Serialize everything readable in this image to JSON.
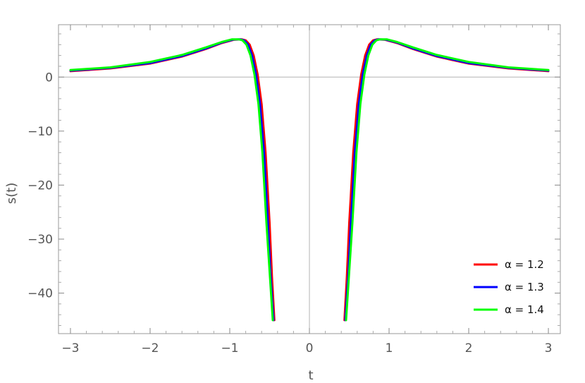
{
  "chart_data": {
    "type": "line",
    "title": "",
    "xlabel": "t",
    "ylabel": "s(t)",
    "xlim": [
      -3.15,
      3.15
    ],
    "ylim": [
      -47.5,
      9.7
    ],
    "x_ticks": [
      -3,
      -2,
      -1,
      0,
      1,
      2,
      3
    ],
    "x_tick_labels": [
      "−3",
      "−2",
      "−1",
      "0",
      "1",
      "2",
      "3"
    ],
    "y_ticks": [
      0,
      -10,
      -20,
      -30,
      -40
    ],
    "y_tick_labels": [
      "0",
      "−10",
      "−20",
      "−30",
      "−40"
    ],
    "grid": false,
    "zero_lines": true,
    "legend_position": "bottom-right",
    "series": [
      {
        "name": "α = 1.2",
        "color": "#ff0000",
        "x": [
          -3.0,
          -2.5,
          -2.0,
          -1.6,
          -1.3,
          -1.1,
          -0.95,
          -0.85,
          -0.8,
          -0.75,
          -0.7,
          -0.65,
          -0.6,
          -0.55,
          -0.5,
          -0.47,
          -0.44,
          0.44,
          0.47,
          0.5,
          0.55,
          0.6,
          0.65,
          0.7,
          0.75,
          0.8,
          0.85,
          0.95,
          1.1,
          1.3,
          1.6,
          2.0,
          2.5,
          3.0
        ],
        "y": [
          1.1,
          1.6,
          2.5,
          3.8,
          5.2,
          6.3,
          6.9,
          7.0,
          6.8,
          6.0,
          4.0,
          0.5,
          -5.0,
          -14.0,
          -27.0,
          -37.0,
          -45.0,
          -45.0,
          -37.0,
          -27.0,
          -14.0,
          -5.0,
          0.5,
          4.0,
          6.0,
          6.8,
          7.0,
          6.9,
          6.3,
          5.2,
          3.8,
          2.5,
          1.6,
          1.1
        ]
      },
      {
        "name": "α = 1.3",
        "color": "#0000ff",
        "x": [
          -3.0,
          -2.5,
          -2.0,
          -1.6,
          -1.3,
          -1.1,
          -0.95,
          -0.87,
          -0.82,
          -0.77,
          -0.72,
          -0.67,
          -0.62,
          -0.57,
          -0.52,
          -0.49,
          -0.45,
          0.45,
          0.49,
          0.52,
          0.57,
          0.62,
          0.67,
          0.72,
          0.77,
          0.82,
          0.87,
          0.95,
          1.1,
          1.3,
          1.6,
          2.0,
          2.5,
          3.0
        ],
        "y": [
          1.2,
          1.7,
          2.6,
          3.9,
          5.3,
          6.4,
          6.95,
          7.0,
          6.8,
          6.0,
          4.0,
          0.5,
          -5.0,
          -14.0,
          -27.0,
          -36.0,
          -45.0,
          -45.0,
          -36.0,
          -27.0,
          -14.0,
          -5.0,
          0.5,
          4.0,
          6.0,
          6.8,
          7.0,
          6.95,
          6.4,
          5.3,
          3.9,
          2.6,
          1.7,
          1.2
        ]
      },
      {
        "name": "α = 1.4",
        "color": "#00ff00",
        "x": [
          -3.0,
          -2.5,
          -2.0,
          -1.6,
          -1.3,
          -1.1,
          -0.97,
          -0.89,
          -0.84,
          -0.79,
          -0.74,
          -0.69,
          -0.64,
          -0.59,
          -0.54,
          -0.5,
          -0.46,
          0.46,
          0.5,
          0.54,
          0.59,
          0.64,
          0.69,
          0.74,
          0.79,
          0.84,
          0.89,
          0.97,
          1.1,
          1.3,
          1.6,
          2.0,
          2.5,
          3.0
        ],
        "y": [
          1.3,
          1.8,
          2.8,
          4.1,
          5.5,
          6.5,
          7.0,
          7.0,
          6.8,
          6.0,
          4.0,
          0.5,
          -5.0,
          -14.0,
          -27.0,
          -36.0,
          -45.0,
          -45.0,
          -36.0,
          -27.0,
          -14.0,
          -5.0,
          0.5,
          4.0,
          6.0,
          6.8,
          7.0,
          7.0,
          6.5,
          5.5,
          4.1,
          2.8,
          1.8,
          1.3
        ]
      }
    ]
  }
}
